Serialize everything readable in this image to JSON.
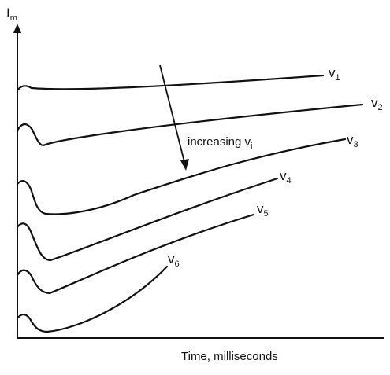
{
  "chart_data": {
    "type": "line",
    "ylabel": {
      "text": "I",
      "subscript": "m"
    },
    "xlabel": "Time, milliseconds",
    "annotation": {
      "text": "increasing v",
      "subscript": "i"
    },
    "series": [
      {
        "name": "v1",
        "label_main": "v",
        "label_sub": "1"
      },
      {
        "name": "v2",
        "label_main": "v",
        "label_sub": "2"
      },
      {
        "name": "v3",
        "label_main": "v",
        "label_sub": "3"
      },
      {
        "name": "v4",
        "label_main": "v",
        "label_sub": "4"
      },
      {
        "name": "v5",
        "label_main": "v",
        "label_sub": "5"
      },
      {
        "name": "v6",
        "label_main": "v",
        "label_sub": "6"
      }
    ],
    "grid": false,
    "legend": "none"
  }
}
